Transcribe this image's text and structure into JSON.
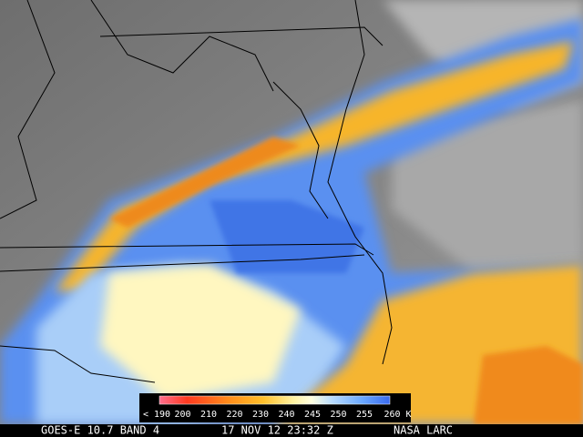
{
  "colorbar": {
    "labels": [
      "< 190",
      "200",
      "210",
      "220",
      "230",
      "240",
      "245",
      "250",
      "255",
      "260 K"
    ]
  },
  "footer": {
    "satellite": "GOES-E 10.7 BAND 4",
    "time": "17 NOV 12 23:32 Z",
    "source": "NASA LARC"
  }
}
